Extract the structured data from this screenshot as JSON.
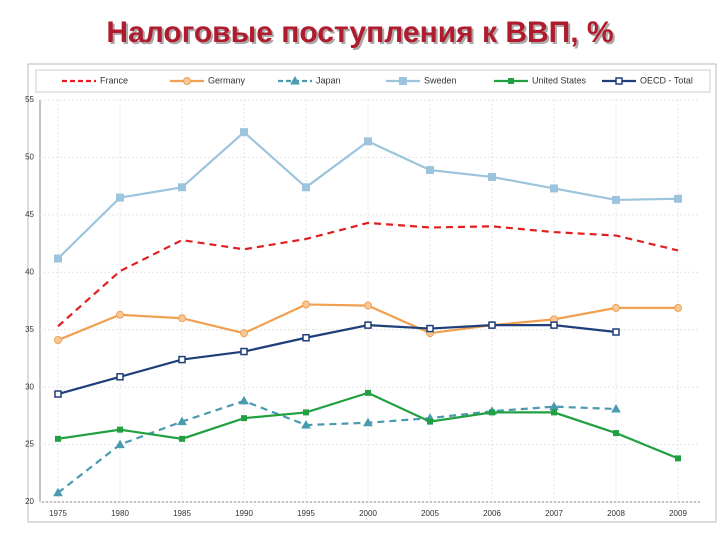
{
  "chart_data": {
    "type": "line",
    "title": "Налоговые поступления к ВВП, %",
    "categories": [
      "1975",
      "1980",
      "1985",
      "1990",
      "1995",
      "2000",
      "2005",
      "2006",
      "2007",
      "2008",
      "2009"
    ],
    "ylim": [
      20,
      55
    ],
    "yticks": [
      20,
      25,
      30,
      35,
      40,
      45,
      50,
      55
    ],
    "grid": true,
    "legend": "top",
    "series": [
      {
        "name": "France",
        "color": "#e02020",
        "dash": true,
        "marker": "none",
        "values": [
          35.3,
          40.1,
          42.8,
          42.0,
          42.9,
          44.3,
          43.9,
          44.0,
          43.5,
          43.2,
          41.9
        ]
      },
      {
        "name": "Germany",
        "color": "#f0a050",
        "dash": false,
        "marker": "circle",
        "values": [
          34.1,
          36.3,
          36.0,
          34.7,
          37.2,
          37.1,
          34.7,
          35.4,
          35.9,
          36.9,
          36.9
        ]
      },
      {
        "name": "Japan",
        "color": "#4a9ab0",
        "dash": true,
        "marker": "triangle",
        "values": [
          20.8,
          25.0,
          27.0,
          28.8,
          26.7,
          26.9,
          27.3,
          27.9,
          28.3,
          28.1,
          null
        ]
      },
      {
        "name": "Sweden",
        "color": "#9cc4dc",
        "dash": false,
        "marker": "square",
        "values": [
          41.2,
          46.5,
          47.4,
          52.2,
          47.4,
          51.4,
          48.9,
          48.3,
          47.3,
          46.3,
          46.4
        ]
      },
      {
        "name": "United States",
        "color": "#20a040",
        "dash": false,
        "marker": "dot",
        "values": [
          25.5,
          26.3,
          25.5,
          27.3,
          27.8,
          29.5,
          27.0,
          27.8,
          27.8,
          26.0,
          23.8
        ]
      },
      {
        "name": "OECD - Total",
        "color": "#1f3f7a",
        "dash": false,
        "marker": "hollow-square",
        "values": [
          29.4,
          30.9,
          32.4,
          33.1,
          34.3,
          35.4,
          35.1,
          35.4,
          35.4,
          34.8,
          null
        ]
      }
    ]
  }
}
